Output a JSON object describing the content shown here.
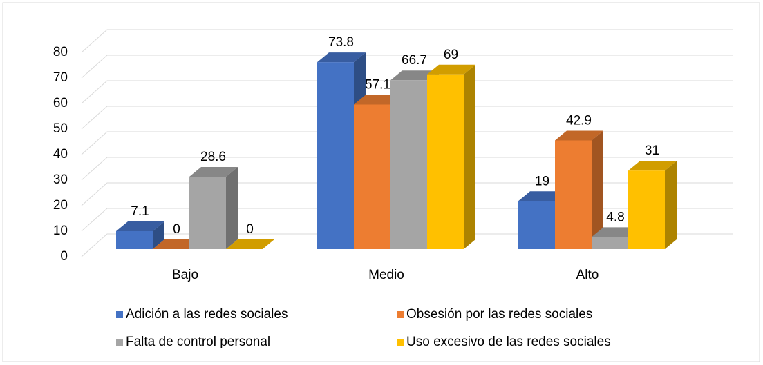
{
  "chart_data": {
    "type": "bar3d",
    "categories": [
      "Bajo",
      "Medio",
      "Alto"
    ],
    "series": [
      {
        "name": "Adición a las redes sociales",
        "color": "#4472c4",
        "values": [
          7.1,
          73.8,
          19
        ]
      },
      {
        "name": "Obsesión por las redes sociales",
        "color": "#ed7d31",
        "values": [
          0,
          57.1,
          42.9
        ]
      },
      {
        "name": "Falta de control personal",
        "color": "#a5a5a5",
        "values": [
          28.6,
          66.7,
          4.8
        ]
      },
      {
        "name": "Uso excesivo de las redes sociales",
        "color": "#ffc000",
        "values": [
          0,
          69,
          31
        ]
      }
    ],
    "ylim": [
      0,
      80
    ],
    "yticks": [
      0,
      10,
      20,
      30,
      40,
      50,
      60,
      70,
      80
    ],
    "grid": true,
    "legend": "bottom"
  }
}
